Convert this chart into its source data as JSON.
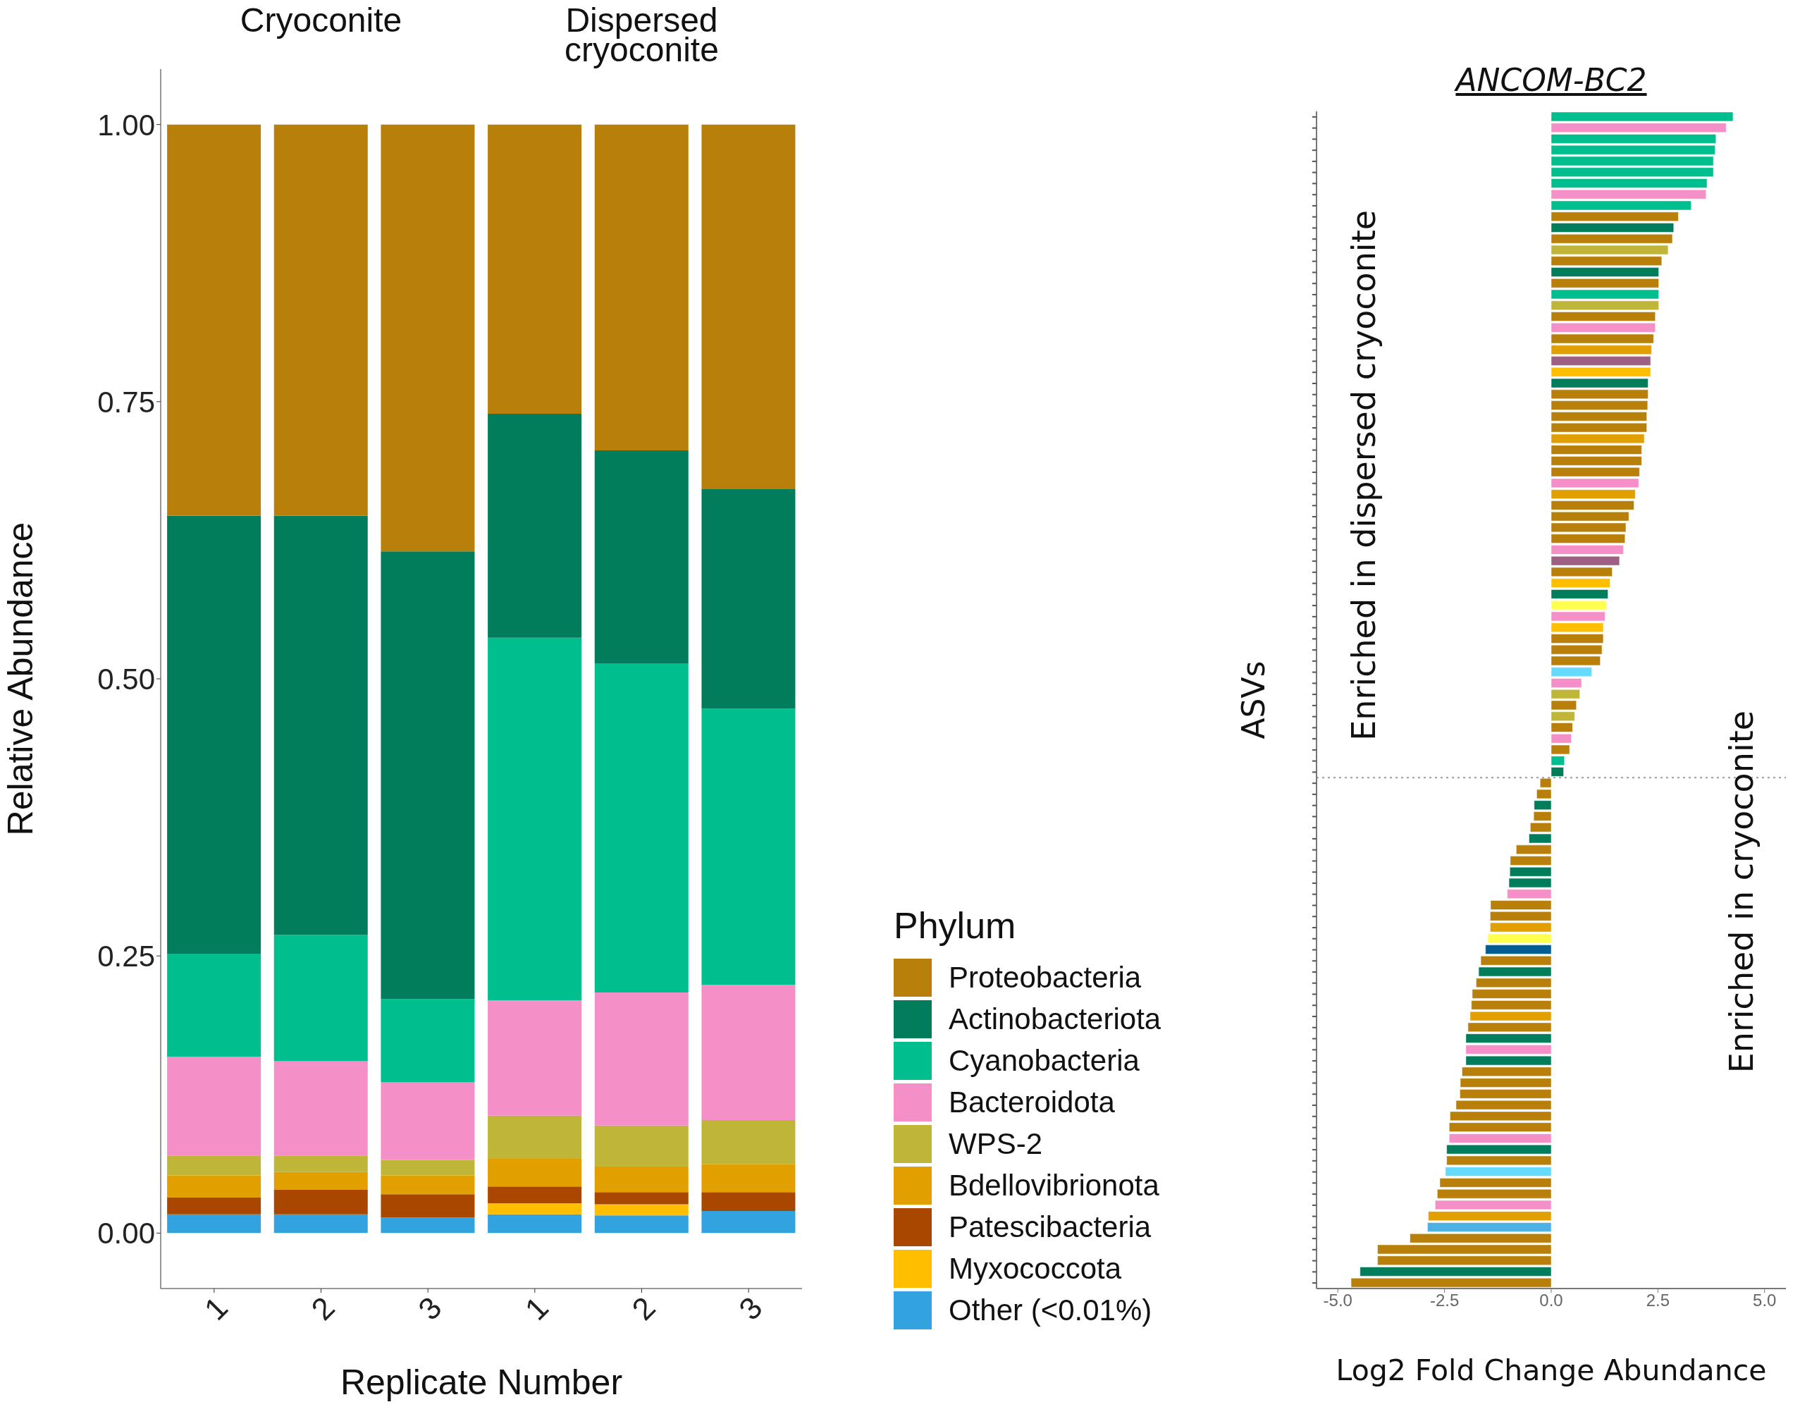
{
  "chart_data": [
    {
      "type": "bar",
      "stacked": true,
      "xlabel": "Replicate Number",
      "ylabel": "Relative Abundance",
      "legend": "right",
      "legend_title": "Phylum",
      "annotations": [
        "Cryoconite",
        "Dispersed cryoconite"
      ],
      "categories": [
        "1",
        "2",
        "3",
        "1",
        "2",
        "3"
      ],
      "ylim": [
        -0.05,
        1.05
      ],
      "yticks": [
        {
          "value": 0,
          "label": "0.00"
        },
        0.25,
        {
          "value": 0.5,
          "label": "0.50"
        },
        0.75,
        {
          "value": 1,
          "label": "1.00"
        }
      ],
      "series": [
        {
          "name": "Other (<0.01%)",
          "color": "#33a3e0",
          "values": [
            0.017,
            0.017,
            0.014,
            0.017,
            0.016,
            0.02
          ]
        },
        {
          "name": "Myxococcota",
          "color": "#ffbf00",
          "values": [
            0,
            0,
            0,
            0.01,
            0.01,
            0
          ]
        },
        {
          "name": "Patescibacteria",
          "color": "#a94700",
          "values": [
            0.015,
            0.022,
            0.021,
            0.015,
            0.011,
            0.017
          ]
        },
        {
          "name": "Bdellovibrionota",
          "color": "#e29f00",
          "values": [
            0.02,
            0.016,
            0.017,
            0.025,
            0.023,
            0.025
          ]
        },
        {
          "name": "WPS-2",
          "color": "#bfb539",
          "values": [
            0.018,
            0.015,
            0.014,
            0.039,
            0.037,
            0.04
          ]
        },
        {
          "name": "Bacteroidota",
          "color": "#f48fc7",
          "values": [
            0.089,
            0.085,
            0.07,
            0.104,
            0.12,
            0.122
          ]
        },
        {
          "name": "Cyanobacteria",
          "color": "#00be8d",
          "values": [
            0.093,
            0.114,
            0.075,
            0.327,
            0.297,
            0.249
          ]
        },
        {
          "name": "Actinobacteriota",
          "color": "#027d5c",
          "values": [
            0.395,
            0.378,
            0.404,
            0.202,
            0.192,
            0.198
          ]
        },
        {
          "name": "Proteobacteria",
          "color": "#b8800a",
          "values": [
            0.353,
            0.353,
            0.385,
            0.261,
            0.294,
            0.329
          ]
        }
      ]
    },
    {
      "type": "bar",
      "orientation": "horizontal",
      "title": "ANCOM-BC2",
      "xlabel": "Log2 Fold Change Abundance",
      "ylabel": "ASVs",
      "annotations": [
        "Enriched in dispersed cryoconite",
        "Enriched in cryoconite"
      ],
      "xlim": [
        -5.5,
        5.5
      ],
      "xticks": [
        {
          "value": -5,
          "label": "-5.0"
        },
        -2.5,
        {
          "value": 0,
          "label": "0.0"
        },
        2.5,
        {
          "value": 5,
          "label": "5.0"
        }
      ],
      "ref_lines": [
        {
          "axis": "y",
          "line_style": "dotted",
          "color": "#999999"
        }
      ],
      "categories": [
        null,
        null,
        null,
        null,
        null,
        null,
        null,
        null,
        null,
        null,
        null,
        null,
        null,
        null,
        null,
        null,
        null,
        null,
        null,
        null,
        null,
        null,
        null,
        null,
        null,
        null,
        null,
        null,
        null,
        null,
        null,
        null,
        null,
        null,
        null,
        null,
        null,
        null,
        null,
        null,
        null,
        null,
        null,
        null,
        null,
        null,
        null,
        null,
        null,
        null,
        null,
        null,
        null,
        null,
        null,
        null,
        null,
        null,
        null,
        null,
        null,
        null,
        null,
        null,
        null,
        null,
        null,
        null,
        null,
        null,
        null,
        null,
        null,
        null,
        null,
        null,
        null,
        null,
        null,
        null,
        null,
        null,
        null,
        null,
        null,
        null,
        null,
        null,
        null,
        null,
        null,
        null,
        null,
        null,
        null,
        null,
        null,
        null,
        null,
        null,
        null,
        null,
        null,
        null,
        null,
        null
      ],
      "values": [
        4.26,
        4.1,
        3.86,
        3.84,
        3.8,
        3.8,
        3.65,
        3.63,
        3.28,
        2.98,
        2.87,
        2.84,
        2.74,
        2.59,
        2.52,
        2.52,
        2.52,
        2.52,
        2.44,
        2.44,
        2.4,
        2.35,
        2.33,
        2.33,
        2.27,
        2.27,
        2.26,
        2.24,
        2.24,
        2.18,
        2.12,
        2.12,
        2.07,
        2.05,
        1.97,
        1.94,
        1.82,
        1.75,
        1.73,
        1.69,
        1.6,
        1.43,
        1.38,
        1.33,
        1.29,
        1.26,
        1.22,
        1.22,
        1.19,
        1.15,
        0.95,
        0.71,
        0.67,
        0.59,
        0.55,
        0.5,
        0.47,
        0.43,
        0.31,
        0.29,
        -0.26,
        -0.34,
        -0.4,
        -0.41,
        -0.49,
        -0.52,
        -0.82,
        -0.96,
        -0.97,
        -0.99,
        -1.03,
        -1.42,
        -1.43,
        -1.43,
        -1.49,
        -1.54,
        -1.65,
        -1.7,
        -1.76,
        -1.85,
        -1.87,
        -1.9,
        -1.95,
        -2.0,
        -2.0,
        -2.0,
        -2.09,
        -2.13,
        -2.14,
        -2.23,
        -2.37,
        -2.39,
        -2.39,
        -2.45,
        -2.45,
        -2.48,
        -2.61,
        -2.67,
        -2.72,
        -2.88,
        -2.9,
        -3.31,
        -4.07,
        -4.07,
        -4.48,
        -4.69
      ],
      "colors": [
        "#00be8d",
        "#f48fc7",
        "#00be8d",
        "#00be8d",
        "#00be8d",
        "#00be8d",
        "#00be8d",
        "#f48fc7",
        "#00be8d",
        "#b8800a",
        "#027d5c",
        "#b8800a",
        "#bfb539",
        "#b8800a",
        "#027d5c",
        "#b8800a",
        "#00be8d",
        "#bfb539",
        "#b8800a",
        "#f48fc7",
        "#b8800a",
        "#e29f00",
        "#9e6082",
        "#ffbf00",
        "#027d5c",
        "#b8800a",
        "#b8800a",
        "#b8800a",
        "#b8800a",
        "#e29f00",
        "#b8800a",
        "#b8800a",
        "#b8800a",
        "#f48fc7",
        "#e29f00",
        "#b8800a",
        "#b8800a",
        "#b8800a",
        "#b8800a",
        "#f48fc7",
        "#9e6082",
        "#b8800a",
        "#ffbf00",
        "#027d5c",
        "#ffff4f",
        "#f48fc7",
        "#ffbf00",
        "#b8800a",
        "#b8800a",
        "#b8800a",
        "#66d9ff",
        "#f48fc7",
        "#bfb539",
        "#b8800a",
        "#bfb539",
        "#b8800a",
        "#f48fc7",
        "#b8800a",
        "#00be8d",
        "#027d5c",
        "#b8800a",
        "#b8800a",
        "#027d5c",
        "#b8800a",
        "#b8800a",
        "#027d5c",
        "#b8800a",
        "#b8800a",
        "#027d5c",
        "#027d5c",
        "#f48fc7",
        "#b8800a",
        "#b8800a",
        "#e29f00",
        "#ffff4f",
        "#005c91",
        "#b8800a",
        "#027d5c",
        "#b8800a",
        "#b8800a",
        "#b8800a",
        "#e29f00",
        "#b8800a",
        "#027d5c",
        "#f48fc7",
        "#027d5c",
        "#b8800a",
        "#b8800a",
        "#b8800a",
        "#b8800a",
        "#b8800a",
        "#b8800a",
        "#f48fc7",
        "#027d5c",
        "#b8800a",
        "#66d9ff",
        "#b8800a",
        "#b8800a",
        "#f48fc7",
        "#e29f00",
        "#4fb0e6",
        "#b8800a",
        "#b8800a",
        "#b8800a",
        "#027d5c",
        "#b8800a"
      ]
    }
  ]
}
